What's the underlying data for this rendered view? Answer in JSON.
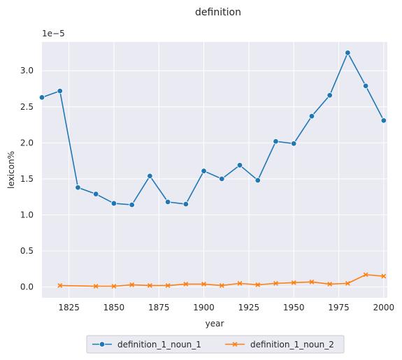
{
  "chart_data": {
    "type": "line",
    "title": "definition",
    "xlabel": "year",
    "ylabel": "lexicon%",
    "y_scale_label": "1e−5",
    "xlim": [
      1810,
      2002
    ],
    "ylim": [
      -0.15,
      3.4
    ],
    "x_ticks": [
      1825,
      1850,
      1875,
      1900,
      1925,
      1950,
      1975,
      2000
    ],
    "y_ticks": [
      0.0,
      0.5,
      1.0,
      1.5,
      2.0,
      2.5,
      3.0
    ],
    "y_tick_labels": [
      "0.0",
      "0.5",
      "1.0",
      "1.5",
      "2.0",
      "2.5",
      "3.0"
    ],
    "grid": true,
    "legend_position": "bottom-center",
    "series": [
      {
        "name": "definition_1_noun_1",
        "color": "#1f77b4",
        "marker": "circle",
        "x": [
          1810,
          1820,
          1830,
          1840,
          1850,
          1860,
          1870,
          1880,
          1890,
          1900,
          1910,
          1920,
          1930,
          1940,
          1950,
          1960,
          1970,
          1980,
          1990,
          2000
        ],
        "y": [
          2.63,
          2.72,
          1.38,
          1.29,
          1.16,
          1.14,
          1.54,
          1.18,
          1.15,
          1.61,
          1.5,
          1.69,
          1.48,
          2.02,
          1.99,
          2.37,
          2.66,
          3.25,
          2.79,
          2.31
        ]
      },
      {
        "name": "definition_1_noun_2",
        "color": "#ff7f0e",
        "marker": "x",
        "x": [
          1820,
          1840,
          1850,
          1860,
          1870,
          1880,
          1890,
          1900,
          1910,
          1920,
          1930,
          1940,
          1950,
          1960,
          1970,
          1980,
          1990,
          2000
        ],
        "y": [
          0.02,
          0.01,
          0.01,
          0.03,
          0.02,
          0.02,
          0.04,
          0.04,
          0.02,
          0.05,
          0.03,
          0.05,
          0.06,
          0.07,
          0.04,
          0.05,
          0.17,
          0.15
        ]
      }
    ]
  }
}
